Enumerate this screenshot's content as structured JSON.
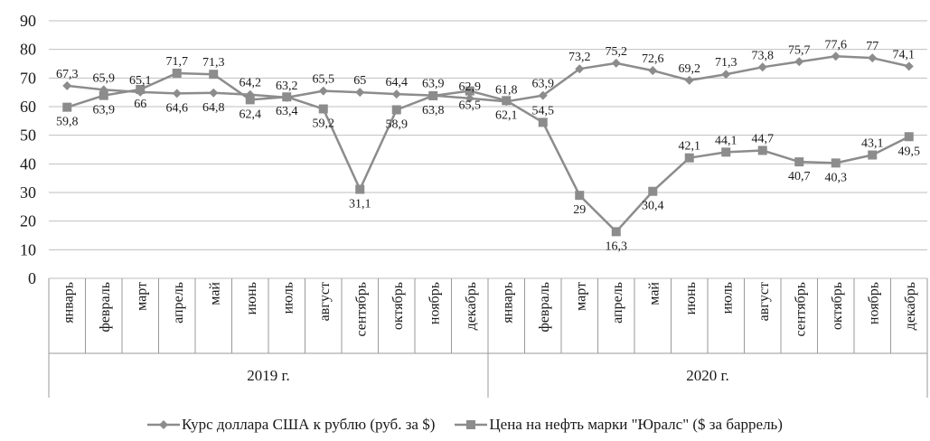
{
  "chart_data": {
    "type": "line",
    "ylim": [
      0,
      90
    ],
    "yticks": [
      "0",
      "10",
      "20",
      "30",
      "40",
      "50",
      "60",
      "70",
      "80",
      "90"
    ],
    "grid": "horizontal",
    "legend_position": "bottom",
    "categories": [
      "январь",
      "февраль",
      "март",
      "апрель",
      "май",
      "июнь",
      "июль",
      "август",
      "сентябрь",
      "октябрь",
      "ноябрь",
      "декабрь",
      "январь",
      "февраль",
      "март",
      "апрель",
      "май",
      "июнь",
      "июль",
      "август",
      "сентябрь",
      "октябрь",
      "ноябрь",
      "декабрь"
    ],
    "groups": [
      {
        "label": "2019 г.",
        "count": 12
      },
      {
        "label": "2020 г.",
        "count": 12
      }
    ],
    "series": [
      {
        "name": "Курс доллара США к рублю (руб. за $)",
        "marker": "diamond",
        "color": "#8c8c8c",
        "values": [
          67.3,
          65.9,
          65.1,
          64.6,
          64.8,
          64.2,
          63.2,
          65.5,
          65,
          64.4,
          63.9,
          62.9,
          61.8,
          63.9,
          73.2,
          75.2,
          72.6,
          69.2,
          71.3,
          73.8,
          75.7,
          77.6,
          77,
          74.1
        ],
        "labels": [
          "67,3",
          "65,9",
          "65,1",
          "64,6",
          "64,8",
          "64,2",
          "63,2",
          "65,5",
          "65",
          "64,4",
          "63,9",
          "62,9",
          "61,8",
          "63,9",
          "73,2",
          "75,2",
          "72,6",
          "69,2",
          "71,3",
          "73,8",
          "75,7",
          "77,6",
          "77",
          "74,1"
        ]
      },
      {
        "name": "Цена на нефть марки \"Юралс\" ($ за баррель)",
        "marker": "square",
        "color": "#8c8c8c",
        "values": [
          59.8,
          63.9,
          66,
          71.7,
          71.3,
          62.4,
          63.4,
          59.2,
          31.1,
          58.9,
          63.8,
          65.5,
          62.1,
          54.5,
          29,
          16.3,
          30.4,
          42.1,
          44.1,
          44.7,
          40.7,
          40.3,
          43.1,
          49.5
        ],
        "labels": [
          "59,8",
          "63,9",
          "66",
          "71,7",
          "71,3",
          "62,4",
          "63,4",
          "59,2",
          "31,1",
          "58,9",
          "63,8",
          "65,5",
          "62,1",
          "54,5",
          "29",
          "16,3",
          "30,4",
          "42,1",
          "44,1",
          "44,7",
          "40,7",
          "40,3",
          "43,1",
          "49,5"
        ]
      }
    ]
  }
}
